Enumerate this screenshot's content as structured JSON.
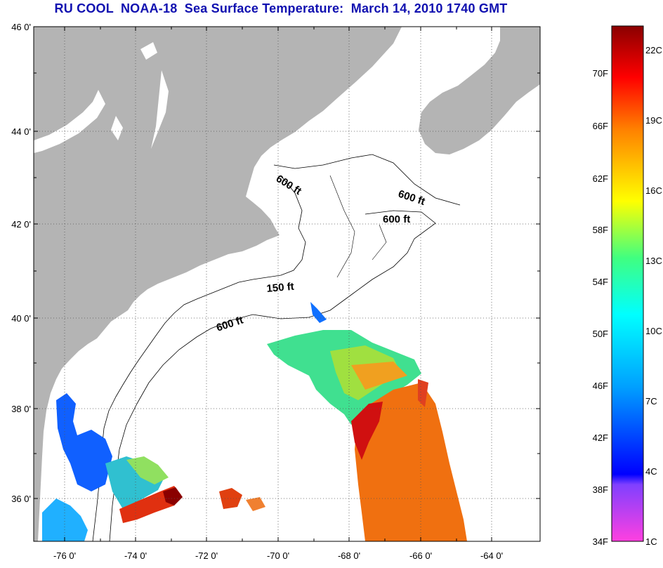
{
  "title": "RU COOL  NOAA-18  Sea Surface Temperature:  March 14, 2010 1740 GMT",
  "axes": {
    "lat_ticks": [
      "46 0'",
      "44 0'",
      "42 0'",
      "40 0'",
      "38 0'",
      "36 0'"
    ],
    "lon_ticks": [
      "-76 0'",
      "-74 0'",
      "-72 0'",
      "-70 0'",
      "-68 0'",
      "-66 0'",
      "-64 0'"
    ],
    "lon_range": [
      -77,
      -62.8
    ],
    "lat_range": [
      35,
      46
    ]
  },
  "contours": [
    {
      "label": "600 ft"
    },
    {
      "label": "600 ft"
    },
    {
      "label": "600 ft"
    },
    {
      "label": "150 ft"
    },
    {
      "label": "600 ft"
    }
  ],
  "colorbar": {
    "fahrenheit": [
      "70F",
      "66F",
      "62F",
      "58F",
      "54F",
      "50F",
      "46F",
      "42F",
      "38F",
      "34F"
    ],
    "celsius": [
      "22C",
      "19C",
      "16C",
      "13C",
      "10C",
      "7C",
      "4C",
      "1C"
    ]
  },
  "colors": {
    "land": "#b4b4b4",
    "title": "#1010b0"
  }
}
